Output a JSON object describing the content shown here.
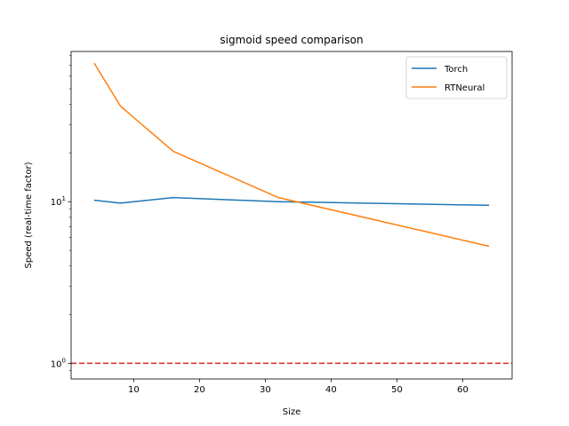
{
  "chart_data": {
    "type": "line",
    "title": "sigmoid speed comparison",
    "xlabel": "Size",
    "ylabel": "Speed (real-time factor)",
    "yscale": "log",
    "xlim": [
      0.5,
      67.5
    ],
    "ylim": [
      0.8,
      85
    ],
    "xticks": [
      10,
      20,
      30,
      40,
      50,
      60
    ],
    "xtick_labels": [
      "10",
      "20",
      "30",
      "40",
      "50",
      "60"
    ],
    "yticks": [
      1,
      10
    ],
    "ytick_labels": [
      "10^0",
      "10^1"
    ],
    "x": [
      4,
      8,
      16,
      32,
      64
    ],
    "series": [
      {
        "name": "Torch",
        "color": "#1f77b4",
        "values": [
          10.2,
          9.8,
          10.6,
          10.0,
          9.5
        ]
      },
      {
        "name": "RTNeural",
        "color": "#ff7f0e",
        "values": [
          72,
          39,
          20.5,
          10.6,
          5.3
        ]
      }
    ],
    "reference_line": {
      "y": 1,
      "color": "#d62728",
      "style": "dashed"
    },
    "legend": {
      "placement": "top-right"
    },
    "grid": false
  }
}
